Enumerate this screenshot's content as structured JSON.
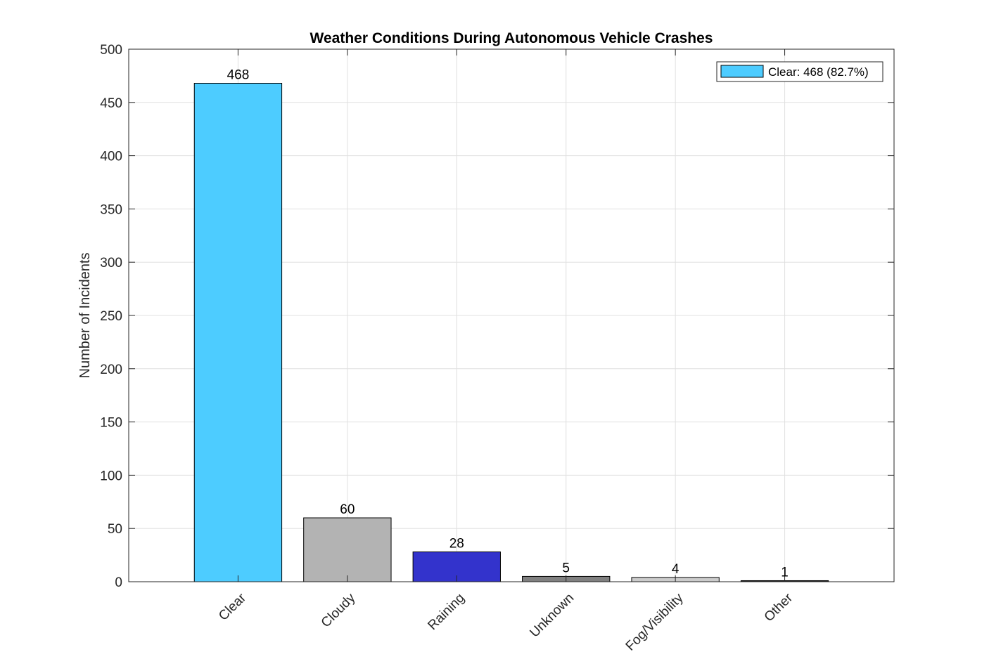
{
  "chart_data": {
    "type": "bar",
    "title": "Weather Conditions During Autonomous Vehicle Crashes",
    "xlabel": "",
    "ylabel": "Number of Incidents",
    "categories": [
      "Clear",
      "Cloudy",
      "Raining",
      "Unknown",
      "Fog/Visibility",
      "Other"
    ],
    "values": [
      468,
      60,
      28,
      5,
      4,
      1
    ],
    "data_labels": [
      "468",
      "60",
      "28",
      "5",
      "4",
      "1"
    ],
    "bar_colors": [
      "#4DCCFF",
      "#B3B3B3",
      "#3333CC",
      "#808080",
      "#CCCCCC",
      "#1A1A1A"
    ],
    "ylim": [
      0,
      500
    ],
    "yticks": [
      0,
      50,
      100,
      150,
      200,
      250,
      300,
      350,
      400,
      450,
      500
    ],
    "ytick_labels": [
      "0",
      "50",
      "100",
      "150",
      "200",
      "250",
      "300",
      "350",
      "400",
      "450",
      "500"
    ],
    "grid": true,
    "legend": {
      "placement": "top-right",
      "entries": [
        {
          "label": "Clear: 468 (82.7%)",
          "color": "#4DCCFF"
        }
      ]
    }
  }
}
